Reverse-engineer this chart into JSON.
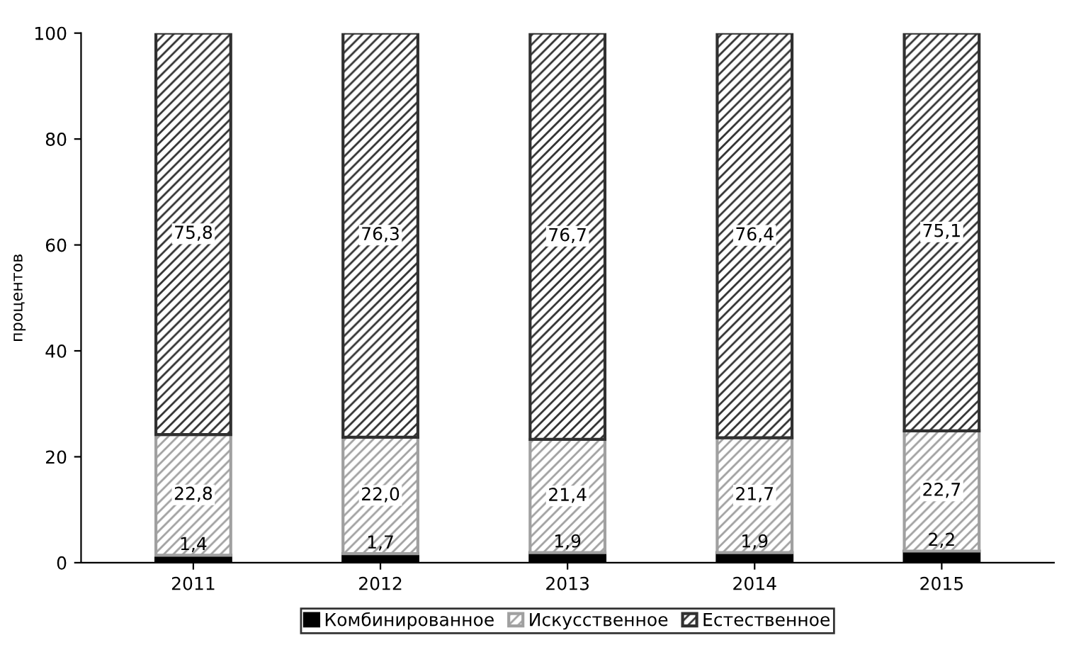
{
  "chart_data": {
    "type": "bar",
    "stacked": true,
    "ylabel": "процентов",
    "categories": [
      "2011",
      "2012",
      "2013",
      "2014",
      "2015"
    ],
    "series": [
      {
        "name": "Комбинированное",
        "color": "#000000",
        "values": [
          1.4,
          1.7,
          1.9,
          1.9,
          2.2
        ],
        "value_labels": [
          "1,4",
          "1,7",
          "1,9",
          "1,9",
          "2,2"
        ]
      },
      {
        "name": "Искусственное",
        "color": "#a0a0a0",
        "values": [
          22.8,
          22.0,
          21.4,
          21.7,
          22.7
        ],
        "value_labels": [
          "22,8",
          "22,0",
          "21,4",
          "21,7",
          "22,7"
        ]
      },
      {
        "name": "Естественное",
        "color": "#303030",
        "values": [
          75.8,
          76.3,
          76.7,
          76.4,
          75.1
        ],
        "value_labels": [
          "75,8",
          "76,3",
          "76,7",
          "76,4",
          "75,1"
        ]
      }
    ],
    "ylim": [
      0,
      100
    ],
    "yticks": [
      0,
      20,
      40,
      60,
      80,
      100
    ],
    "legend": "bottom",
    "grid": false
  }
}
